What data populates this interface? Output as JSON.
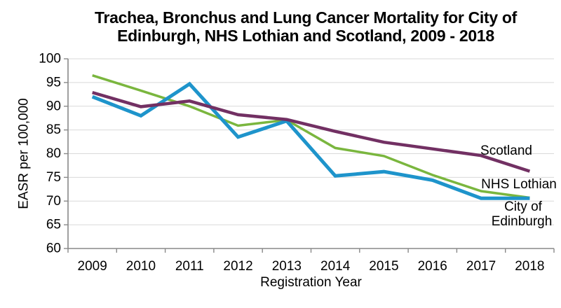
{
  "chart_data": {
    "type": "line",
    "title": "Trachea, Bronchus and Lung Cancer Mortality for City of Edinburgh, NHS Lothian and Scotland, 2009 - 2018",
    "title_lines": [
      "Trachea, Bronchus and Lung Cancer Mortality for City of",
      "Edinburgh, NHS Lothian and Scotland, 2009 - 2018"
    ],
    "xlabel": "Registration Year",
    "ylabel": "EASR per 100,000",
    "categories": [
      "2009",
      "2010",
      "2011",
      "2012",
      "2013",
      "2014",
      "2015",
      "2016",
      "2017",
      "2018"
    ],
    "ylim": [
      60,
      100
    ],
    "ytick_step": 5,
    "yticks": [
      60,
      65,
      70,
      75,
      80,
      85,
      90,
      95,
      100
    ],
    "grid": "horizontal",
    "legend_position": "end-of-line-labels",
    "series": [
      {
        "name": "Scotland",
        "color": "#723063",
        "label_lines": [
          "Scotland"
        ],
        "values": [
          92.9,
          89.9,
          91.1,
          88.2,
          87.2,
          84.7,
          82.4,
          81.0,
          79.6,
          76.3
        ]
      },
      {
        "name": "NHS Lothian",
        "color": "#7AB63E",
        "label_lines": [
          "NHS Lothian"
        ],
        "values": [
          96.5,
          93.3,
          90.0,
          85.9,
          87.1,
          81.2,
          79.5,
          75.5,
          72.1,
          70.7
        ]
      },
      {
        "name": "City of Edinburgh",
        "color": "#1E94CB",
        "label_lines": [
          "City of",
          "Edinburgh"
        ],
        "values": [
          92.0,
          88.0,
          94.7,
          83.5,
          86.9,
          75.3,
          76.2,
          74.4,
          70.6,
          70.6
        ]
      }
    ]
  }
}
